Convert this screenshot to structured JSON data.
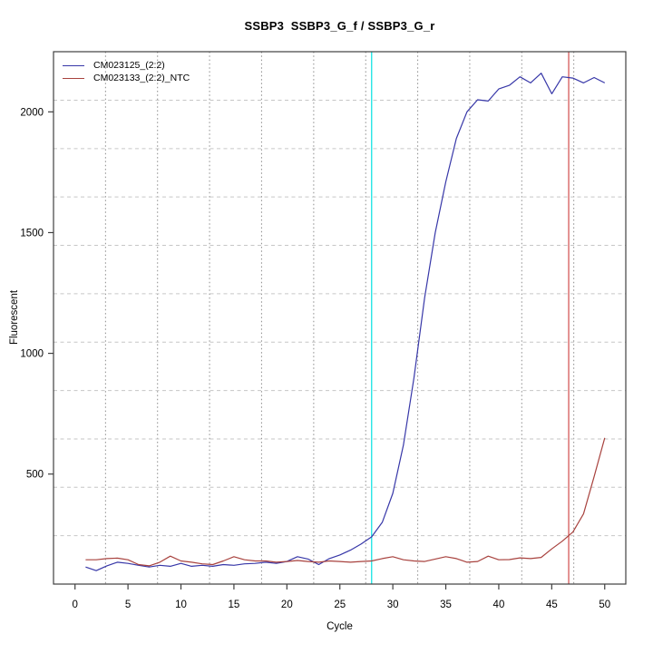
{
  "title": "SSBP3  SSBP3_G_f / SSBP3_G_r",
  "chart_data": {
    "type": "line",
    "title": "SSBP3  SSBP3_G_f / SSBP3_G_r",
    "xlabel": "Cycle",
    "ylabel": "Fluorescent",
    "xlim": [
      -2.03,
      51.99
    ],
    "ylim": [
      44.4,
      2249.2
    ],
    "x_ticks": [
      0,
      5,
      10,
      15,
      20,
      25,
      30,
      35,
      40,
      45,
      50
    ],
    "y_ticks": [
      500,
      1000,
      1500,
      2000
    ],
    "grid_on": true,
    "grid": {
      "v_cycles": [
        2.88,
        7.79,
        12.7,
        17.61,
        22.53,
        27.44,
        32.35,
        37.26,
        42.17,
        47.08
      ],
      "v_style": "dotted",
      "v_color": "#8c8c8c",
      "h_values": [
        244.8,
        445.2,
        645.6,
        846.0,
        1046.4,
        1246.8,
        1447.2,
        1647.6,
        1848.0,
        2048.4
      ],
      "h_style": "dashed",
      "h_color": "#c6c6c6"
    },
    "x": [
      1,
      2,
      3,
      4,
      5,
      6,
      7,
      8,
      9,
      10,
      11,
      12,
      13,
      14,
      15,
      16,
      17,
      18,
      19,
      20,
      21,
      22,
      23,
      24,
      25,
      26,
      27,
      28,
      29,
      30,
      31,
      32,
      33,
      34,
      35,
      36,
      37,
      38,
      39,
      40,
      41,
      42,
      43,
      44,
      45,
      46,
      47,
      48,
      49,
      50
    ],
    "series": [
      {
        "name": "CM023125_(2:2)",
        "color": "#3737a8",
        "values": [
          115,
          100,
          120,
          135,
          130,
          122,
          115,
          122,
          118,
          130,
          118,
          122,
          118,
          125,
          122,
          128,
          130,
          135,
          130,
          138,
          158,
          148,
          125,
          150,
          165,
          185,
          210,
          240,
          300,
          420,
          620,
          900,
          1230,
          1500,
          1710,
          1890,
          2000,
          2050,
          2045,
          2095,
          2110,
          2145,
          2120,
          2160,
          2075,
          2145,
          2140,
          2120,
          2142,
          2120
        ]
      },
      {
        "name": "CM023133_(2:2)_NTC",
        "color": "#a8423e",
        "values": [
          145,
          145,
          150,
          152,
          145,
          125,
          120,
          135,
          160,
          140,
          135,
          128,
          125,
          140,
          158,
          145,
          140,
          140,
          135,
          138,
          142,
          138,
          135,
          140,
          138,
          135,
          138,
          140,
          150,
          158,
          145,
          140,
          138,
          148,
          158,
          150,
          135,
          138,
          160,
          145,
          146,
          153,
          150,
          155,
          190,
          222,
          260,
          335,
          490,
          650
        ]
      }
    ],
    "vlines": [
      {
        "x": 28.0,
        "color": "#00e0e0",
        "name": "threshold-cycle-line"
      },
      {
        "x": 46.6,
        "color": "#d04a4a",
        "name": "ntc-threshold-cycle-line"
      }
    ],
    "legend": {
      "position": "top-left",
      "items": [
        {
          "label": "CM023125_(2:2)",
          "color": "#3737a8"
        },
        {
          "label": "CM023133_(2:2)_NTC",
          "color": "#a8423e"
        }
      ]
    },
    "axis_color": "#3f3f3f",
    "tick_label_color": "#000000"
  }
}
